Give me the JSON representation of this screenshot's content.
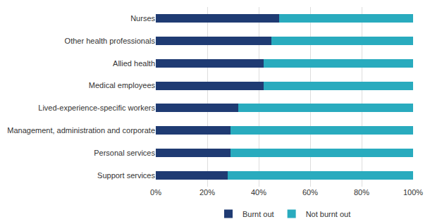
{
  "chart_data": {
    "type": "bar",
    "orientation": "horizontal",
    "stacked": true,
    "categories": [
      "Nurses",
      "Other health professionals",
      "Allied health",
      "Medical employees",
      "Lived-experience-specific workers",
      "Management, administration and corporate",
      "Personal services",
      "Support services"
    ],
    "series": [
      {
        "name": "Burnt out",
        "color": "#1F3B73",
        "values": [
          48,
          45,
          42,
          42,
          32,
          29,
          29,
          28
        ]
      },
      {
        "name": "Not burnt out",
        "color": "#29ABBE",
        "values": [
          52,
          55,
          58,
          58,
          68,
          71,
          71,
          72
        ]
      }
    ],
    "xlim": [
      0,
      100
    ],
    "xticks": [
      {
        "value": 0,
        "label": "0%"
      },
      {
        "value": 20,
        "label": "20%"
      },
      {
        "value": 40,
        "label": "40%"
      },
      {
        "value": 60,
        "label": "60%"
      },
      {
        "value": 80,
        "label": "80%"
      },
      {
        "value": 100,
        "label": "100%"
      }
    ],
    "grid": true,
    "legend": "bottom"
  }
}
